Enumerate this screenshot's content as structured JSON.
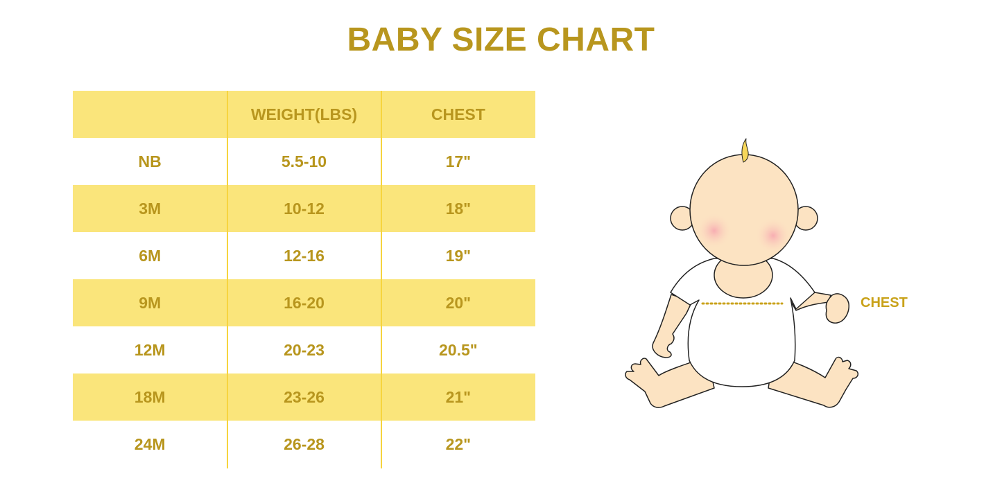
{
  "title": "BABY SIZE CHART",
  "table": {
    "headers": [
      "",
      "WEIGHT(LBS)",
      "CHEST"
    ],
    "rows": [
      [
        "NB",
        "5.5-10",
        "17\""
      ],
      [
        "3M",
        "10-12",
        "18\""
      ],
      [
        "6M",
        "12-16",
        "19\""
      ],
      [
        "9M",
        "16-20",
        "20\""
      ],
      [
        "12M",
        "20-23",
        "20.5\""
      ],
      [
        "18M",
        "23-26",
        "21\""
      ],
      [
        "24M",
        "26-28",
        "22\""
      ]
    ]
  },
  "illustration": {
    "chest_label": "CHEST"
  },
  "colors": {
    "text": "#b8961e",
    "band": "#fae57b",
    "divider": "#f6d43e"
  }
}
